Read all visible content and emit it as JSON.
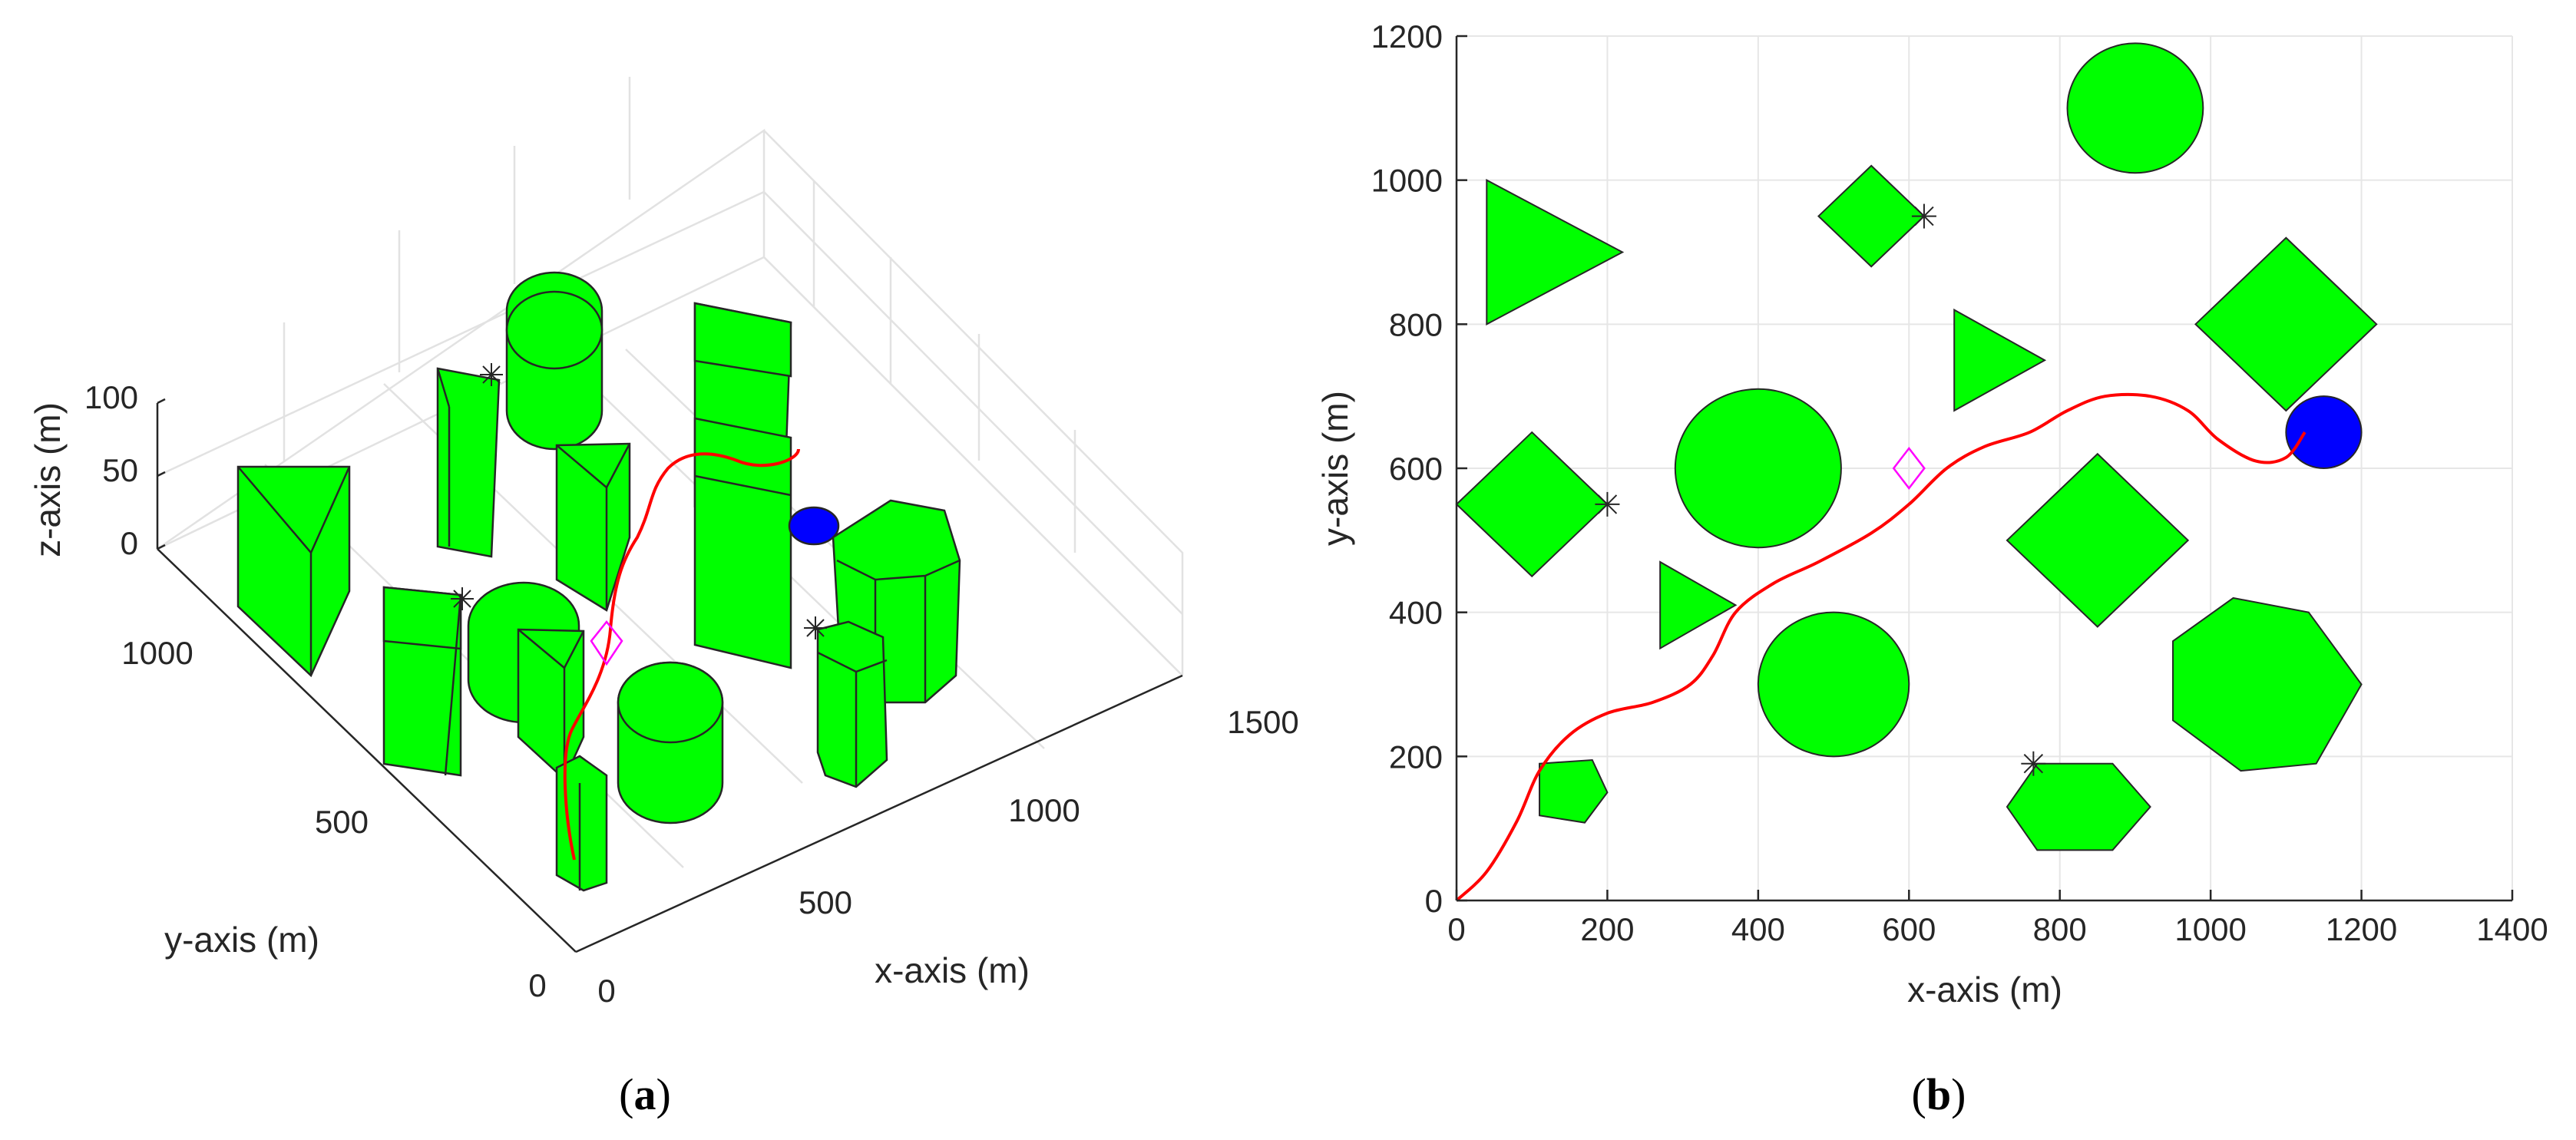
{
  "chart_data": [
    {
      "type": "scatter",
      "view": "3d",
      "caption": "a",
      "xlabel": "x-axis (m)",
      "ylabel": "y-axis (m)",
      "zlabel": "z-axis (m)",
      "xlim": [
        0,
        1500
      ],
      "ylim": [
        0,
        1200
      ],
      "zlim": [
        0,
        100
      ],
      "x_ticks": [
        "0",
        "500",
        "1000",
        "1500"
      ],
      "y_ticks": [
        "0",
        "500",
        "1000"
      ],
      "z_ticks": [
        "0",
        "50",
        "100"
      ],
      "grid": true,
      "colors": {
        "obstacle": "#00ff00",
        "target": "#0000ff",
        "path": "#ff0000",
        "waypoint": "#ff00ff"
      }
    },
    {
      "type": "scatter",
      "view": "2d",
      "caption": "b",
      "xlabel": "x-axis (m)",
      "ylabel": "y-axis (m)",
      "xlim": [
        0,
        1400
      ],
      "ylim": [
        0,
        1200
      ],
      "x_ticks": [
        "0",
        "200",
        "400",
        "600",
        "800",
        "1000",
        "1200",
        "1400"
      ],
      "y_ticks": [
        "0",
        "200",
        "400",
        "600",
        "800",
        "1000",
        "1200"
      ],
      "grid": true,
      "colors": {
        "obstacle": "#00ff00",
        "target": "#0000ff",
        "path": "#ff0000",
        "waypoint": "#ff00ff"
      },
      "obstacles": [
        {
          "shape": "circle",
          "cx": 900,
          "cy": 1100,
          "r": 90
        },
        {
          "shape": "circle",
          "cx": 400,
          "cy": 600,
          "r": 110
        },
        {
          "shape": "circle",
          "cx": 500,
          "cy": 300,
          "r": 100
        },
        {
          "shape": "polygon",
          "points": [
            [
              40,
              1000
            ],
            [
              220,
              900
            ],
            [
              40,
              800
            ]
          ]
        },
        {
          "shape": "polygon",
          "points": [
            [
              550,
              1020
            ],
            [
              620,
              950
            ],
            [
              550,
              880
            ],
            [
              480,
              950
            ]
          ]
        },
        {
          "shape": "polygon",
          "points": [
            [
              660,
              820
            ],
            [
              780,
              750
            ],
            [
              660,
              680
            ]
          ]
        },
        {
          "shape": "polygon",
          "points": [
            [
              1100,
              920
            ],
            [
              1220,
              800
            ],
            [
              1100,
              680
            ],
            [
              980,
              800
            ]
          ]
        },
        {
          "shape": "polygon",
          "points": [
            [
              100,
              650
            ],
            [
              200,
              550
            ],
            [
              100,
              450
            ],
            [
              0,
              550
            ]
          ]
        },
        {
          "shape": "polygon",
          "points": [
            [
              270,
              470
            ],
            [
              370,
              410
            ],
            [
              270,
              350
            ]
          ]
        },
        {
          "shape": "polygon",
          "points": [
            [
              850,
              620
            ],
            [
              970,
              500
            ],
            [
              850,
              380
            ],
            [
              730,
              500
            ]
          ]
        },
        {
          "shape": "polygon",
          "points": [
            [
              1130,
              400
            ],
            [
              1200,
              300
            ],
            [
              1140,
              190
            ],
            [
              1040,
              180
            ],
            [
              950,
              250
            ],
            [
              950,
              360
            ],
            [
              1030,
              420
            ]
          ]
        },
        {
          "shape": "polygon",
          "points": [
            [
              110,
              190
            ],
            [
              180,
              195
            ],
            [
              200,
              150
            ],
            [
              170,
              108
            ],
            [
              110,
              118
            ]
          ]
        },
        {
          "shape": "polygon",
          "points": [
            [
              770,
              190
            ],
            [
              870,
              190
            ],
            [
              920,
              130
            ],
            [
              870,
              70
            ],
            [
              770,
              70
            ],
            [
              730,
              130
            ]
          ]
        }
      ],
      "target": {
        "cx": 1150,
        "cy": 650,
        "rx": 50,
        "ry": 50
      },
      "waypoint": {
        "x": 600,
        "y": 600
      },
      "markers": [
        {
          "x": 620,
          "y": 950
        },
        {
          "x": 200,
          "y": 550
        },
        {
          "x": 765,
          "y": 190
        }
      ],
      "path": [
        [
          0,
          0
        ],
        [
          40,
          40
        ],
        [
          80,
          110
        ],
        [
          110,
          180
        ],
        [
          150,
          230
        ],
        [
          200,
          260
        ],
        [
          260,
          275
        ],
        [
          310,
          300
        ],
        [
          340,
          340
        ],
        [
          370,
          400
        ],
        [
          420,
          440
        ],
        [
          480,
          470
        ],
        [
          550,
          510
        ],
        [
          600,
          550
        ],
        [
          650,
          600
        ],
        [
          700,
          630
        ],
        [
          760,
          650
        ],
        [
          810,
          680
        ],
        [
          860,
          700
        ],
        [
          920,
          700
        ],
        [
          970,
          680
        ],
        [
          1010,
          640
        ],
        [
          1060,
          610
        ],
        [
          1100,
          615
        ],
        [
          1125,
          650
        ]
      ]
    }
  ]
}
